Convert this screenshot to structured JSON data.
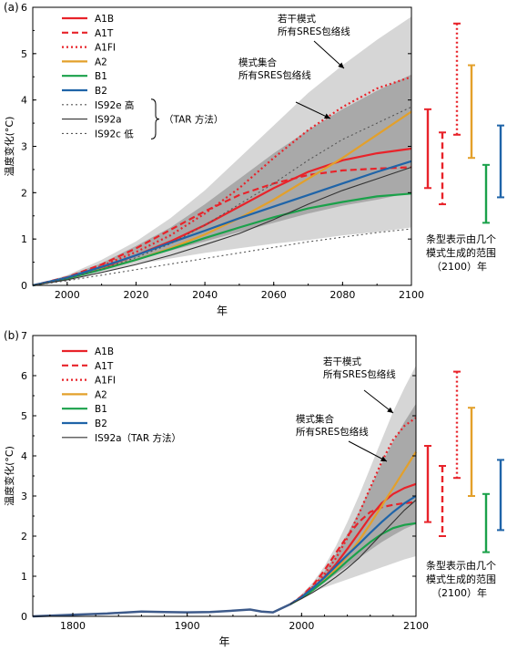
{
  "chart_data": [
    {
      "type": "line",
      "panel_label": "(a)",
      "xlabel": "年",
      "ylabel": "温度变化(°C)",
      "xlim": [
        1990,
        2100
      ],
      "ylim": [
        0,
        6
      ],
      "xticks": [
        2000,
        2020,
        2040,
        2060,
        2080,
        2100
      ],
      "yticks": [
        0,
        1,
        2,
        3,
        4,
        5,
        6
      ],
      "grid": false,
      "legend_position": "top-left",
      "annotations": {
        "outer": "若干模式\n所有SRES包络线",
        "inner": "模式集合\n所有SRES包络线",
        "bars_note": "条型表示由几个\n模式生成的范围\n（2100）年",
        "tar_brace": "（TAR 方法）"
      },
      "envelopes": [
        {
          "name": "outer",
          "x": [
            1990,
            2000,
            2010,
            2020,
            2030,
            2040,
            2050,
            2060,
            2070,
            2080,
            2090,
            2100
          ],
          "upper": [
            0,
            0.22,
            0.55,
            0.95,
            1.45,
            2.05,
            2.75,
            3.45,
            4.15,
            4.75,
            5.3,
            5.8
          ],
          "lower": [
            0,
            0.12,
            0.3,
            0.45,
            0.58,
            0.7,
            0.8,
            0.9,
            0.98,
            1.08,
            1.15,
            1.25
          ]
        },
        {
          "name": "inner",
          "x": [
            1990,
            2000,
            2010,
            2020,
            2030,
            2040,
            2050,
            2060,
            2070,
            2080,
            2090,
            2100
          ],
          "upper": [
            0,
            0.2,
            0.48,
            0.85,
            1.25,
            1.75,
            2.3,
            2.85,
            3.35,
            3.8,
            4.2,
            4.55
          ],
          "lower": [
            0,
            0.15,
            0.35,
            0.55,
            0.75,
            0.95,
            1.15,
            1.35,
            1.55,
            1.72,
            1.85,
            2.0
          ]
        }
      ],
      "series": [
        {
          "name": "A1B",
          "color": "#e8232a",
          "dash": "solid",
          "x": [
            1990,
            2000,
            2010,
            2020,
            2030,
            2040,
            2050,
            2060,
            2070,
            2080,
            2090,
            2100
          ],
          "y": [
            0,
            0.16,
            0.38,
            0.65,
            0.95,
            1.3,
            1.7,
            2.1,
            2.45,
            2.7,
            2.85,
            2.95
          ]
        },
        {
          "name": "A1T",
          "color": "#e8232a",
          "dash": "dash",
          "x": [
            1990,
            2000,
            2010,
            2020,
            2030,
            2040,
            2050,
            2060,
            2070,
            2080,
            2090,
            2100
          ],
          "y": [
            0,
            0.18,
            0.45,
            0.8,
            1.2,
            1.6,
            1.95,
            2.2,
            2.38,
            2.48,
            2.52,
            2.55
          ]
        },
        {
          "name": "A1FI",
          "color": "#e8232a",
          "dash": "dot",
          "x": [
            1990,
            2000,
            2010,
            2020,
            2030,
            2040,
            2050,
            2060,
            2070,
            2080,
            2090,
            2100
          ],
          "y": [
            0,
            0.17,
            0.42,
            0.72,
            1.08,
            1.55,
            2.1,
            2.75,
            3.35,
            3.85,
            4.25,
            4.5
          ]
        },
        {
          "name": "A2",
          "color": "#e3a02b",
          "dash": "solid",
          "x": [
            1990,
            2000,
            2010,
            2020,
            2030,
            2040,
            2050,
            2060,
            2070,
            2080,
            2090,
            2100
          ],
          "y": [
            0,
            0.15,
            0.35,
            0.55,
            0.8,
            1.1,
            1.45,
            1.85,
            2.3,
            2.75,
            3.25,
            3.75
          ]
        },
        {
          "name": "B1",
          "color": "#1aa14a",
          "dash": "solid",
          "x": [
            1990,
            2000,
            2010,
            2020,
            2030,
            2040,
            2050,
            2060,
            2070,
            2080,
            2090,
            2100
          ],
          "y": [
            0,
            0.15,
            0.34,
            0.55,
            0.78,
            1.02,
            1.25,
            1.47,
            1.66,
            1.8,
            1.92,
            1.98
          ]
        },
        {
          "name": "B2",
          "color": "#1f64a8",
          "dash": "solid",
          "x": [
            1990,
            2000,
            2010,
            2020,
            2030,
            2040,
            2050,
            2060,
            2070,
            2080,
            2090,
            2100
          ],
          "y": [
            0,
            0.17,
            0.4,
            0.65,
            0.92,
            1.18,
            1.45,
            1.7,
            1.95,
            2.2,
            2.45,
            2.68
          ]
        },
        {
          "name": "IS92e 高",
          "color": "#555555",
          "dash": "dot",
          "x": [
            1990,
            2000,
            2010,
            2020,
            2030,
            2040,
            2050,
            2060,
            2070,
            2080,
            2090,
            2100
          ],
          "y": [
            0,
            0.15,
            0.35,
            0.6,
            0.9,
            1.3,
            1.75,
            2.2,
            2.7,
            3.15,
            3.5,
            3.85
          ]
        },
        {
          "name": "IS92a",
          "color": "#333333",
          "dash": "solid",
          "x": [
            1990,
            2000,
            2010,
            2020,
            2030,
            2040,
            2050,
            2060,
            2070,
            2080,
            2090,
            2100
          ],
          "y": [
            0,
            0.12,
            0.28,
            0.45,
            0.65,
            0.88,
            1.12,
            1.42,
            1.75,
            2.05,
            2.3,
            2.55
          ]
        },
        {
          "name": "IS92c 低",
          "color": "#555555",
          "dash": "dot",
          "x": [
            1990,
            2000,
            2010,
            2020,
            2030,
            2040,
            2050,
            2060,
            2070,
            2080,
            2090,
            2100
          ],
          "y": [
            0,
            0.1,
            0.22,
            0.34,
            0.46,
            0.58,
            0.7,
            0.82,
            0.94,
            1.04,
            1.14,
            1.22
          ]
        }
      ],
      "range_bars_2100": [
        {
          "name": "A1B",
          "color": "#e8232a",
          "dash": "solid",
          "low": 2.1,
          "high": 3.8
        },
        {
          "name": "A1T",
          "color": "#e8232a",
          "dash": "dash",
          "low": 1.75,
          "high": 3.3
        },
        {
          "name": "A1FI",
          "color": "#e8232a",
          "dash": "dot",
          "low": 3.25,
          "high": 5.65
        },
        {
          "name": "A2",
          "color": "#e3a02b",
          "dash": "solid",
          "low": 2.75,
          "high": 4.75
        },
        {
          "name": "B1",
          "color": "#1aa14a",
          "dash": "solid",
          "low": 1.35,
          "high": 2.6
        },
        {
          "name": "B2",
          "color": "#1f64a8",
          "dash": "solid",
          "low": 1.9,
          "high": 3.45
        }
      ]
    },
    {
      "type": "line",
      "panel_label": "(b)",
      "xlabel": "年",
      "ylabel": "温度变化(°C)",
      "xlim": [
        1765,
        2100
      ],
      "ylim": [
        0,
        7
      ],
      "xticks": [
        1800,
        1900,
        2000,
        2100
      ],
      "yticks": [
        0,
        1,
        2,
        3,
        4,
        5,
        6,
        7
      ],
      "grid": false,
      "legend_position": "top-left",
      "annotations": {
        "outer": "若干模式\n所有SRES包络线",
        "inner": "模式集合\n所有SRES包络线",
        "bars_note": "条型表示由几个\n模式生成的范围\n（2100）年"
      },
      "history": {
        "x": [
          1765,
          1800,
          1830,
          1860,
          1880,
          1900,
          1920,
          1940,
          1955,
          1965,
          1975,
          1990
        ],
        "y": [
          0,
          0.04,
          0.07,
          0.12,
          0.11,
          0.1,
          0.11,
          0.14,
          0.17,
          0.12,
          0.1,
          0.3
        ]
      },
      "envelopes": [
        {
          "name": "outer",
          "x": [
            1990,
            2000,
            2010,
            2020,
            2030,
            2040,
            2050,
            2060,
            2070,
            2080,
            2090,
            2100
          ],
          "upper": [
            0.3,
            0.55,
            0.85,
            1.25,
            1.75,
            2.35,
            3.0,
            3.7,
            4.4,
            5.1,
            5.7,
            6.25
          ],
          "lower": [
            0.3,
            0.45,
            0.6,
            0.72,
            0.82,
            0.92,
            1.02,
            1.12,
            1.22,
            1.32,
            1.42,
            1.5
          ]
        },
        {
          "name": "inner",
          "x": [
            1990,
            2000,
            2010,
            2020,
            2030,
            2040,
            2050,
            2060,
            2070,
            2080,
            2090,
            2100
          ],
          "upper": [
            0.3,
            0.52,
            0.78,
            1.12,
            1.55,
            2.05,
            2.6,
            3.2,
            3.8,
            4.35,
            4.85,
            5.3
          ],
          "lower": [
            0.3,
            0.47,
            0.65,
            0.85,
            1.05,
            1.25,
            1.45,
            1.65,
            1.85,
            2.02,
            2.18,
            2.3
          ]
        }
      ],
      "series": [
        {
          "name": "A1B",
          "color": "#e8232a",
          "dash": "solid",
          "x": [
            1990,
            2000,
            2010,
            2020,
            2030,
            2040,
            2050,
            2060,
            2070,
            2080,
            2090,
            2100
          ],
          "y": [
            0.3,
            0.48,
            0.7,
            0.98,
            1.3,
            1.68,
            2.08,
            2.48,
            2.82,
            3.05,
            3.2,
            3.3
          ]
        },
        {
          "name": "A1T",
          "color": "#e8232a",
          "dash": "dash",
          "x": [
            1990,
            2000,
            2010,
            2020,
            2030,
            2040,
            2050,
            2060,
            2070,
            2080,
            2090,
            2100
          ],
          "y": [
            0.3,
            0.5,
            0.78,
            1.15,
            1.58,
            2.0,
            2.35,
            2.6,
            2.72,
            2.78,
            2.82,
            2.85
          ]
        },
        {
          "name": "A1FI",
          "color": "#e8232a",
          "dash": "dot",
          "x": [
            1990,
            2000,
            2010,
            2020,
            2030,
            2040,
            2050,
            2060,
            2070,
            2080,
            2090,
            2100
          ],
          "y": [
            0.3,
            0.49,
            0.74,
            1.05,
            1.45,
            1.95,
            2.55,
            3.2,
            3.85,
            4.4,
            4.75,
            4.95
          ]
        },
        {
          "name": "A2",
          "color": "#e3a02b",
          "dash": "solid",
          "x": [
            1990,
            2000,
            2010,
            2020,
            2030,
            2040,
            2050,
            2060,
            2070,
            2080,
            2090,
            2100
          ],
          "y": [
            0.3,
            0.46,
            0.66,
            0.9,
            1.18,
            1.5,
            1.88,
            2.3,
            2.75,
            3.2,
            3.65,
            4.1
          ]
        },
        {
          "name": "B1",
          "color": "#1aa14a",
          "dash": "solid",
          "x": [
            1990,
            2000,
            2010,
            2020,
            2030,
            2040,
            2050,
            2060,
            2070,
            2080,
            2090,
            2100
          ],
          "y": [
            0.3,
            0.46,
            0.66,
            0.88,
            1.12,
            1.38,
            1.62,
            1.85,
            2.05,
            2.2,
            2.28,
            2.32
          ]
        },
        {
          "name": "B2",
          "color": "#1f64a8",
          "dash": "solid",
          "x": [
            1990,
            2000,
            2010,
            2020,
            2030,
            2040,
            2050,
            2060,
            2070,
            2080,
            2090,
            2100
          ],
          "y": [
            0.3,
            0.48,
            0.71,
            0.97,
            1.25,
            1.53,
            1.8,
            2.08,
            2.35,
            2.6,
            2.82,
            3.0
          ]
        },
        {
          "name": "IS92a（TAR 方法）",
          "color": "#333333",
          "dash": "solid",
          "x": [
            1990,
            2000,
            2010,
            2020,
            2030,
            2040,
            2050,
            2060,
            2070,
            2080,
            2090,
            2100
          ],
          "y": [
            0.3,
            0.44,
            0.6,
            0.78,
            0.98,
            1.2,
            1.45,
            1.75,
            2.05,
            2.35,
            2.65,
            2.9
          ]
        }
      ],
      "range_bars_2100": [
        {
          "name": "A1B",
          "color": "#e8232a",
          "dash": "solid",
          "low": 2.35,
          "high": 4.25
        },
        {
          "name": "A1T",
          "color": "#e8232a",
          "dash": "dash",
          "low": 2.0,
          "high": 3.75
        },
        {
          "name": "A1FI",
          "color": "#e8232a",
          "dash": "dot",
          "low": 3.45,
          "high": 6.1
        },
        {
          "name": "A2",
          "color": "#e3a02b",
          "dash": "solid",
          "low": 3.0,
          "high": 5.2
        },
        {
          "name": "B1",
          "color": "#1aa14a",
          "dash": "solid",
          "low": 1.6,
          "high": 3.05
        },
        {
          "name": "B2",
          "color": "#1f64a8",
          "dash": "solid",
          "low": 2.15,
          "high": 3.9
        }
      ]
    }
  ]
}
